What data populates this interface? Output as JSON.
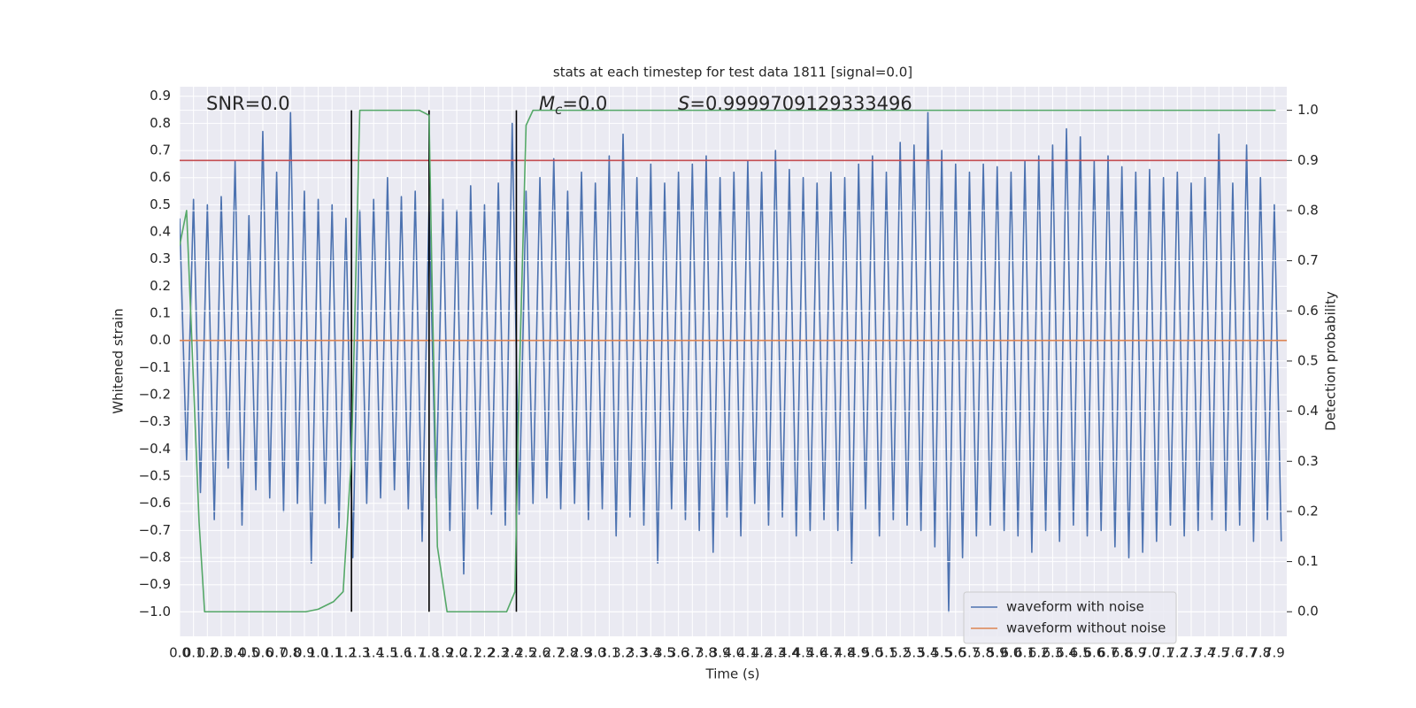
{
  "chart_data": {
    "type": "line",
    "title": "stats at each timestep for test data 1811 [signal=0.0]",
    "xlabel": "Time (s)",
    "ylabel": "Whitened strain",
    "y2label": "Detection probability",
    "annotations": [
      {
        "text": "SNR=0.0"
      },
      {
        "symbol": "M",
        "subscript": "c",
        "text": "=0.0"
      },
      {
        "symbol": "S",
        "text": "=0.9999709129333496"
      }
    ],
    "xlim": [
      0,
      7.99
    ],
    "ylim": [
      -1.09,
      0.935
    ],
    "y2lim": [
      -0.049,
      1.047
    ],
    "grid": true,
    "legend": {
      "loc": "lower right"
    },
    "xticks": [
      {
        "value": 0,
        "label": "0.0"
      },
      0.1,
      0.2,
      0.3,
      0.4,
      0.5,
      0.6,
      0.7,
      0.8,
      0.9,
      {
        "value": 1,
        "label": "1.0"
      },
      1.1,
      1.2,
      1.3,
      1.4,
      1.5,
      1.6,
      1.7,
      1.8,
      1.9,
      {
        "value": 2,
        "label": "2.0"
      },
      2.1,
      2.2,
      2.3,
      2.4,
      2.5,
      2.6,
      2.7,
      2.8,
      2.9,
      {
        "value": 3,
        "label": "3.0"
      },
      3.1,
      3.2,
      3.3,
      3.4,
      3.5,
      3.6,
      3.7,
      3.8,
      3.9,
      {
        "value": 4,
        "label": "4.0"
      },
      4.1,
      4.2,
      4.3,
      4.4,
      4.5,
      4.6,
      4.7,
      4.8,
      4.9,
      {
        "value": 5,
        "label": "5.0"
      },
      5.1,
      5.2,
      5.3,
      5.4,
      5.5,
      5.6,
      5.7,
      5.8,
      5.9,
      {
        "value": 6,
        "label": "6.0"
      },
      6.1,
      6.2,
      6.3,
      6.4,
      6.5,
      6.6,
      6.7,
      6.8,
      6.9,
      {
        "value": 7,
        "label": "7.0"
      },
      7.1,
      7.2,
      7.3,
      7.4,
      7.5,
      7.6,
      7.7,
      7.8,
      7.9
    ],
    "yticks": [
      {
        "value": -1,
        "label": "−1.0"
      },
      {
        "value": -0.9,
        "label": "−0.9"
      },
      {
        "value": -0.8,
        "label": "−0.8"
      },
      {
        "value": -0.7,
        "label": "−0.7"
      },
      {
        "value": -0.6,
        "label": "−0.6"
      },
      {
        "value": -0.5,
        "label": "−0.5"
      },
      {
        "value": -0.4,
        "label": "−0.4"
      },
      {
        "value": -0.3,
        "label": "−0.3"
      },
      {
        "value": -0.2,
        "label": "−0.2"
      },
      {
        "value": -0.1,
        "label": "−0.1"
      },
      {
        "value": 0,
        "label": "0.0"
      },
      0.1,
      0.2,
      0.3,
      0.4,
      0.5,
      0.6,
      0.7,
      0.8,
      0.9
    ],
    "y2ticks": [
      {
        "value": 0,
        "label": "0.0"
      },
      0.1,
      0.2,
      0.3,
      0.4,
      0.5,
      0.6,
      0.7,
      0.8,
      0.9,
      {
        "value": 1,
        "label": "1.0"
      }
    ],
    "series": [
      {
        "name": "waveform with noise",
        "color": "#4c72b0",
        "x": [
          0,
          0.05,
          0.1,
          0.15,
          0.2,
          0.25,
          0.3,
          0.35,
          0.4,
          0.45,
          0.5,
          0.55,
          0.6,
          0.65,
          0.7,
          0.75,
          0.8,
          0.85,
          0.9,
          0.95,
          1,
          1.05,
          1.1,
          1.15,
          1.2,
          1.25,
          1.3,
          1.35,
          1.4,
          1.45,
          1.5,
          1.55,
          1.6,
          1.65,
          1.7,
          1.75,
          1.8,
          1.85,
          1.9,
          1.95,
          2,
          2.05,
          2.1,
          2.15,
          2.2,
          2.25,
          2.3,
          2.35,
          2.4,
          2.45,
          2.5,
          2.55,
          2.6,
          2.65,
          2.7,
          2.75,
          2.8,
          2.85,
          2.9,
          2.95,
          3,
          3.05,
          3.1,
          3.15,
          3.2,
          3.25,
          3.3,
          3.35,
          3.4,
          3.45,
          3.5,
          3.55,
          3.6,
          3.65,
          3.7,
          3.75,
          3.8,
          3.85,
          3.9,
          3.95,
          4,
          4.05,
          4.1,
          4.15,
          4.2,
          4.25,
          4.3,
          4.35,
          4.4,
          4.45,
          4.5,
          4.55,
          4.6,
          4.65,
          4.7,
          4.75,
          4.8,
          4.85,
          4.9,
          4.95,
          5,
          5.05,
          5.1,
          5.15,
          5.2,
          5.25,
          5.3,
          5.35,
          5.4,
          5.45,
          5.5,
          5.55,
          5.6,
          5.65,
          5.7,
          5.75,
          5.8,
          5.85,
          5.9,
          5.95,
          6,
          6.05,
          6.1,
          6.15,
          6.2,
          6.25,
          6.3,
          6.35,
          6.4,
          6.45,
          6.5,
          6.55,
          6.6,
          6.65,
          6.7,
          6.75,
          6.8,
          6.85,
          6.9,
          6.95,
          7,
          7.05,
          7.1,
          7.15,
          7.2,
          7.25,
          7.3,
          7.35,
          7.4,
          7.45,
          7.5,
          7.55,
          7.6,
          7.65,
          7.7,
          7.75,
          7.8,
          7.85,
          7.9,
          7.95
        ],
        "values": [
          0.45,
          -0.44,
          0.52,
          -0.56,
          0.5,
          -0.66,
          0.53,
          -0.47,
          0.66,
          -0.68,
          0.46,
          -0.55,
          0.77,
          -0.58,
          0.62,
          -0.63,
          0.84,
          -0.6,
          0.55,
          -0.82,
          0.52,
          -0.6,
          0.5,
          -0.69,
          0.45,
          -0.8,
          0.48,
          -0.6,
          0.52,
          -0.58,
          0.6,
          -0.55,
          0.53,
          -0.62,
          0.55,
          -0.74,
          0.5,
          -0.58,
          0.52,
          -0.7,
          0.48,
          -0.86,
          0.57,
          -0.62,
          0.5,
          -0.64,
          0.58,
          -0.68,
          0.8,
          -0.64,
          0.55,
          -0.6,
          0.6,
          -0.58,
          0.67,
          -0.62,
          0.55,
          -0.6,
          0.62,
          -0.66,
          0.58,
          -0.62,
          0.68,
          -0.72,
          0.76,
          -0.65,
          0.6,
          -0.68,
          0.65,
          -0.82,
          0.58,
          -0.62,
          0.62,
          -0.66,
          0.65,
          -0.7,
          0.68,
          -0.78,
          0.6,
          -0.65,
          0.62,
          -0.72,
          0.66,
          -0.6,
          0.62,
          -0.68,
          0.7,
          -0.65,
          0.63,
          -0.72,
          0.6,
          -0.7,
          0.58,
          -0.66,
          0.62,
          -0.7,
          0.6,
          -0.82,
          0.65,
          -0.62,
          0.68,
          -0.72,
          0.62,
          -0.66,
          0.73,
          -0.68,
          0.72,
          -0.7,
          0.84,
          -0.76,
          0.7,
          -1.0,
          0.65,
          -0.8,
          0.62,
          -0.72,
          0.65,
          -0.68,
          0.64,
          -0.7,
          0.62,
          -0.72,
          0.66,
          -0.78,
          0.68,
          -0.7,
          0.72,
          -0.74,
          0.78,
          -0.68,
          0.75,
          -0.72,
          0.66,
          -0.7,
          0.68,
          -0.76,
          0.64,
          -0.8,
          0.62,
          -0.78,
          0.63,
          -0.74,
          0.6,
          -0.68,
          0.62,
          -0.72,
          0.58,
          -0.7,
          0.6,
          -0.66,
          0.76,
          -0.7,
          0.58,
          -0.68,
          0.72,
          -0.74,
          0.6,
          -0.66,
          0.5,
          -0.74
        ]
      },
      {
        "name": "waveform without noise",
        "color": "#dd8452",
        "x": [
          0,
          7.99
        ],
        "values": [
          0,
          0
        ]
      },
      {
        "color": "#55a868",
        "axis": "y2",
        "x": [
          0,
          0.05,
          0.14,
          0.18,
          0.91,
          1.0,
          1.11,
          1.18,
          1.24,
          1.3,
          1.73,
          1.8,
          1.82,
          1.86,
          1.93,
          2.36,
          2.42,
          2.45,
          2.5,
          2.55,
          7.91
        ],
        "values": [
          0.73,
          0.8,
          0.18,
          0,
          0,
          0.005,
          0.02,
          0.04,
          0.31,
          1.0,
          1.0,
          0.99,
          0.68,
          0.13,
          0,
          0,
          0.04,
          0.45,
          0.97,
          1.0,
          1.0
        ]
      }
    ],
    "hline": {
      "value": 0.9,
      "axis": "y2",
      "color": "#c44e52"
    },
    "vlines": {
      "x": [
        1.24,
        1.8,
        2.43
      ],
      "ymin": 0,
      "ymax": 1,
      "axis": "y2",
      "color": "#000000"
    }
  }
}
